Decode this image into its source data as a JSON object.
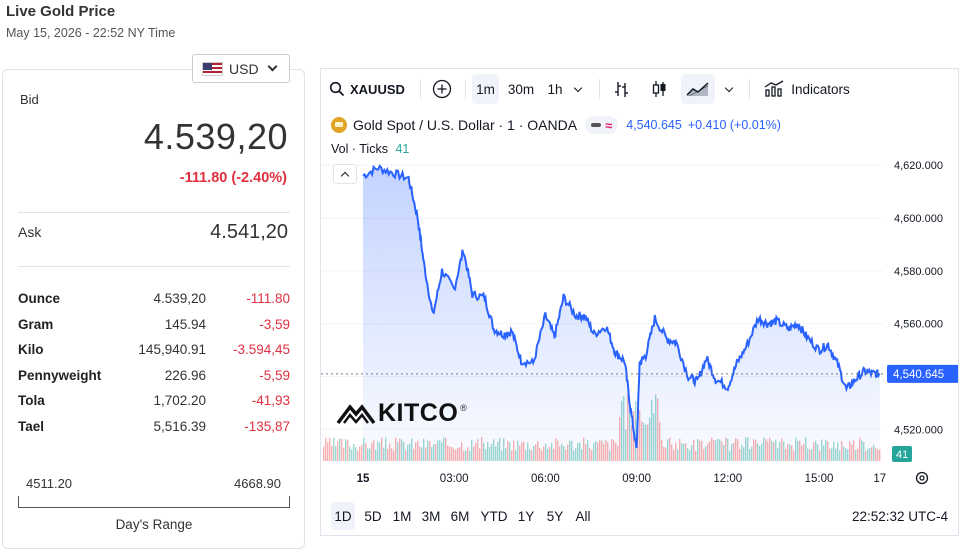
{
  "page": {
    "title": "Live Gold Price",
    "timestamp": "May 15, 2026 - 22:52 NY Time"
  },
  "currency": {
    "code": "USD",
    "flag_icon": "us-flag-icon"
  },
  "quote": {
    "bid_label": "Bid",
    "bid": "4.539,20",
    "change": "-111.80 (-2.40%)",
    "ask_label": "Ask",
    "ask": "4.541,20"
  },
  "units": [
    {
      "name": "Ounce",
      "price": "4.539,20",
      "change": "-111.80"
    },
    {
      "name": "Gram",
      "price": "145.94",
      "change": "-3,59"
    },
    {
      "name": "Kilo",
      "price": "145,940.91",
      "change": "-3.594,45"
    },
    {
      "name": "Pennyweight",
      "price": "226.96",
      "change": "-5,59"
    },
    {
      "name": "Tola",
      "price": "1,702.20",
      "change": "-41,93"
    },
    {
      "name": "Tael",
      "price": "5,516.39",
      "change": "-135,87"
    }
  ],
  "day_range": {
    "low": "4511.20",
    "high": "4668.90",
    "label": "Day's Range"
  },
  "toolbar": {
    "symbol": "XAUUSD",
    "intervals": [
      "1m",
      "30m",
      "1h"
    ],
    "active_interval": "1m",
    "indicators_label": "Indicators"
  },
  "legend": {
    "instrument": "Gold Spot / U.S. Dollar · 1 · OANDA",
    "price": "4,540.645",
    "change": "+0.410 (+0.01%)",
    "vol_label": "Vol · Ticks",
    "vol_value": "41"
  },
  "bottom": {
    "ranges": [
      "1D",
      "5D",
      "1M",
      "3M",
      "6M",
      "YTD",
      "1Y",
      "5Y",
      "All"
    ],
    "active_range": "1D",
    "clock": "22:52:32 UTC-4"
  },
  "brand": {
    "logo_text": "KITCO",
    "registered": "®"
  },
  "colors": {
    "line": "#2962ff",
    "negative": "#e0303f",
    "vol_up": "#26a69a",
    "vol_down": "#ef5350",
    "price_tag": "#2962ff"
  },
  "chart_data": {
    "type": "area",
    "y_ticks": [
      "4,620.000",
      "4,600.000",
      "4,580.000",
      "4,560.000",
      "4,540.000",
      "4,520.000"
    ],
    "x_ticks": [
      "15",
      "03:00",
      "06:00",
      "09:00",
      "12:00",
      "15:00",
      "17"
    ],
    "current_price_label": "4,540.645",
    "current_volume_label": "41",
    "ylim": [
      4508,
      4628
    ],
    "x_hours": [
      0,
      0.5,
      1.0,
      1.5,
      1.8,
      2.0,
      2.3,
      2.6,
      3.0,
      3.3,
      3.6,
      4.0,
      4.3,
      4.6,
      4.9,
      5.2,
      5.6,
      6.0,
      6.3,
      6.6,
      7.0,
      7.3,
      7.6,
      8.0,
      8.3,
      8.6,
      8.8,
      9.0,
      9.1,
      9.3,
      9.6,
      10.0,
      10.3,
      10.7,
      11.0,
      11.3,
      11.6,
      12.0,
      12.3,
      12.6,
      13.0,
      13.3,
      13.6,
      14.0,
      14.3,
      14.6,
      15.0,
      15.3,
      15.6,
      15.9,
      16.2,
      16.5,
      16.8,
      17.0
    ],
    "values": [
      4616,
      4619,
      4617,
      4615,
      4600,
      4583,
      4563,
      4580,
      4573,
      4588,
      4571,
      4570,
      4558,
      4556,
      4557,
      4546,
      4545,
      4563,
      4555,
      4570,
      4563,
      4563,
      4556,
      4559,
      4549,
      4546,
      4528,
      4512,
      4545,
      4548,
      4562,
      4554,
      4553,
      4540,
      4538,
      4547,
      4539,
      4536,
      4545,
      4551,
      4562,
      4560,
      4561,
      4558,
      4560,
      4555,
      4550,
      4552,
      4545,
      4535,
      4539,
      4542,
      4541,
      4541
    ]
  }
}
